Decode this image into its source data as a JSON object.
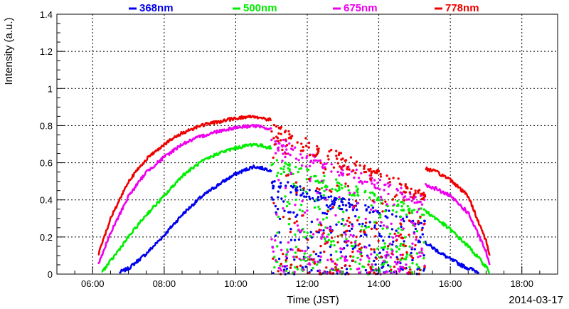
{
  "chart_data": {
    "type": "line",
    "xlabel": "Time (JST)",
    "ylabel": "Intensity (a.u.)",
    "date_label": "2014-03-17",
    "xlim": [
      5.0,
      19.0
    ],
    "ylim": [
      0,
      1.4
    ],
    "x_ticks": [
      6,
      8,
      10,
      12,
      14,
      16,
      18
    ],
    "x_tick_labels": [
      "06:00",
      "08:00",
      "10:00",
      "12:00",
      "14:00",
      "16:00",
      "18:00"
    ],
    "y_ticks": [
      0,
      0.2,
      0.4,
      0.6,
      0.8,
      1,
      1.2,
      1.4
    ],
    "y_tick_labels": [
      "0",
      "0.2",
      "0.4",
      "0.6",
      "0.8",
      "1",
      "1.2",
      "1.4"
    ],
    "grid": true,
    "legend_position": "top",
    "cloudy_period": [
      11.0,
      15.3
    ],
    "series": [
      {
        "name": "368nm",
        "color": "#0000ee",
        "clear_morning": [
          [
            6.75,
            0.01
          ],
          [
            7.0,
            0.03
          ],
          [
            7.5,
            0.11
          ],
          [
            8.0,
            0.21
          ],
          [
            8.5,
            0.32
          ],
          [
            9.0,
            0.41
          ],
          [
            9.5,
            0.48
          ],
          [
            10.0,
            0.54
          ],
          [
            10.5,
            0.58
          ],
          [
            11.0,
            0.56
          ]
        ],
        "afternoon_tail": [
          [
            15.3,
            0.17
          ],
          [
            15.6,
            0.13
          ],
          [
            16.0,
            0.08
          ],
          [
            16.4,
            0.04
          ],
          [
            16.8,
            0.01
          ]
        ],
        "scatter_peak": 0.52
      },
      {
        "name": "500nm",
        "color": "#00ee00",
        "clear_morning": [
          [
            6.25,
            0.01
          ],
          [
            6.5,
            0.07
          ],
          [
            7.0,
            0.2
          ],
          [
            7.5,
            0.32
          ],
          [
            8.0,
            0.42
          ],
          [
            8.5,
            0.53
          ],
          [
            9.0,
            0.6
          ],
          [
            9.5,
            0.65
          ],
          [
            10.0,
            0.68
          ],
          [
            10.5,
            0.7
          ],
          [
            11.0,
            0.68
          ]
        ],
        "afternoon_tail": [
          [
            15.3,
            0.34
          ],
          [
            15.6,
            0.3
          ],
          [
            16.0,
            0.24
          ],
          [
            16.5,
            0.15
          ],
          [
            17.0,
            0.04
          ],
          [
            17.1,
            0.01
          ]
        ],
        "scatter_peak": 0.63
      },
      {
        "name": "675nm",
        "color": "#ee00ee",
        "clear_morning": [
          [
            6.15,
            0.05
          ],
          [
            6.5,
            0.22
          ],
          [
            7.0,
            0.42
          ],
          [
            7.5,
            0.55
          ],
          [
            8.0,
            0.63
          ],
          [
            8.5,
            0.7
          ],
          [
            9.0,
            0.74
          ],
          [
            9.5,
            0.77
          ],
          [
            10.0,
            0.79
          ],
          [
            10.5,
            0.8
          ],
          [
            11.0,
            0.78
          ]
        ],
        "afternoon_tail": [
          [
            15.3,
            0.48
          ],
          [
            15.6,
            0.46
          ],
          [
            16.0,
            0.42
          ],
          [
            16.5,
            0.33
          ],
          [
            17.0,
            0.12
          ],
          [
            17.1,
            0.05
          ]
        ],
        "scatter_peak": 0.75
      },
      {
        "name": "778nm",
        "color": "#ee0000",
        "clear_morning": [
          [
            6.15,
            0.1
          ],
          [
            6.5,
            0.3
          ],
          [
            7.0,
            0.5
          ],
          [
            7.5,
            0.62
          ],
          [
            8.0,
            0.7
          ],
          [
            8.5,
            0.76
          ],
          [
            9.0,
            0.8
          ],
          [
            9.5,
            0.82
          ],
          [
            10.0,
            0.84
          ],
          [
            10.5,
            0.85
          ],
          [
            11.0,
            0.83
          ]
        ],
        "afternoon_tail": [
          [
            15.3,
            0.57
          ],
          [
            15.6,
            0.55
          ],
          [
            16.0,
            0.51
          ],
          [
            16.5,
            0.42
          ],
          [
            17.0,
            0.18
          ],
          [
            17.1,
            0.1
          ]
        ],
        "scatter_peak": 0.82
      }
    ]
  }
}
